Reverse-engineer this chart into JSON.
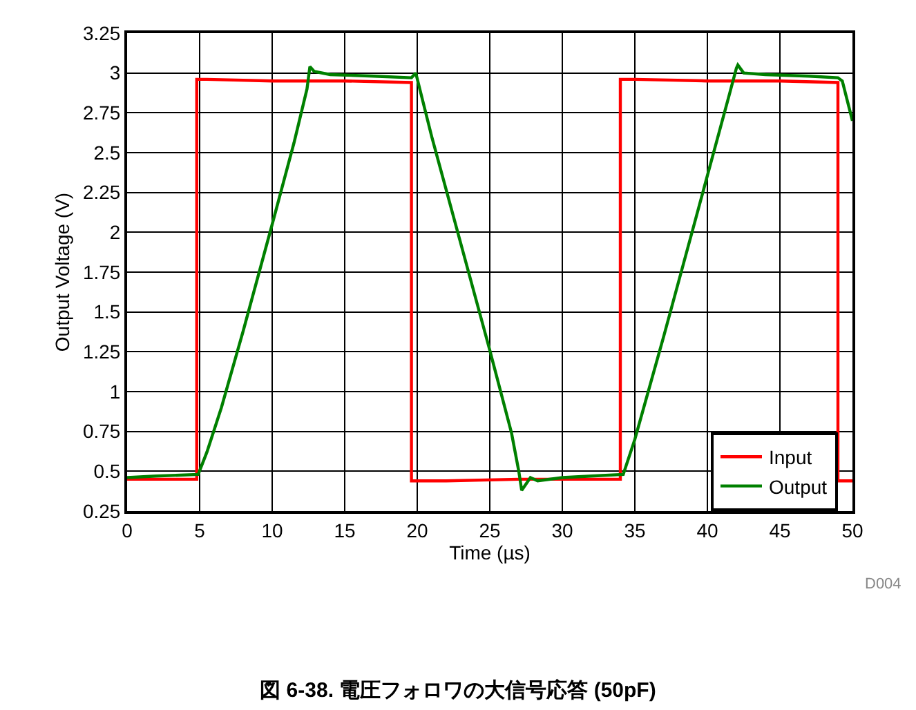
{
  "chart_data": {
    "type": "line",
    "title": "図 6-38. 電圧フォロワの大信号応答 (50pF)",
    "xlabel": "Time (µs)",
    "ylabel": "Output Voltage (V)",
    "annotations": [
      "D004"
    ],
    "series": [
      {
        "name": "Input",
        "color": "#ff0000",
        "x": [
          0,
          4.8,
          4.8,
          5.5,
          10,
          15,
          19.6,
          19.6,
          22,
          27,
          30,
          34.0,
          34.0,
          35,
          40,
          45,
          49.0,
          49.0,
          50
        ],
        "values": [
          0.45,
          0.45,
          2.96,
          2.96,
          2.95,
          2.95,
          2.94,
          0.44,
          0.44,
          0.45,
          0.45,
          0.45,
          2.96,
          2.96,
          2.95,
          2.95,
          2.94,
          0.44,
          0.44
        ]
      },
      {
        "name": "Output",
        "color": "#008000",
        "x": [
          0,
          2,
          4.9,
          5.5,
          6.5,
          8,
          10,
          11.5,
          12.4,
          12.6,
          12.9,
          14,
          17,
          19.6,
          19.9,
          21,
          23,
          25,
          26.5,
          27.0,
          27.2,
          27.5,
          27.8,
          28.3,
          30,
          32,
          34.2,
          35,
          37,
          39,
          41.5,
          42.0,
          42.1,
          42.5,
          44,
          47,
          49.0,
          49.3,
          50
        ],
        "values": [
          0.46,
          0.47,
          0.48,
          0.62,
          0.9,
          1.38,
          2.05,
          2.56,
          2.9,
          3.04,
          3.01,
          2.99,
          2.98,
          2.97,
          3.0,
          2.6,
          1.93,
          1.26,
          0.74,
          0.5,
          0.38,
          0.42,
          0.46,
          0.44,
          0.46,
          0.47,
          0.48,
          0.7,
          1.35,
          2.02,
          2.86,
          3.03,
          3.05,
          3.0,
          2.99,
          2.98,
          2.97,
          2.95,
          2.7
        ]
      }
    ],
    "xlim": [
      0,
      50
    ],
    "xticks": [
      0,
      5,
      10,
      15,
      20,
      25,
      30,
      35,
      40,
      45,
      50
    ],
    "ylim": [
      0.25,
      3.25
    ],
    "yticks": [
      0.25,
      0.5,
      0.75,
      1,
      1.25,
      1.5,
      1.75,
      2,
      2.25,
      2.5,
      2.75,
      3,
      3.25
    ],
    "grid": true,
    "legend": "bottom right",
    "line_style": "solid",
    "marker": "none"
  }
}
